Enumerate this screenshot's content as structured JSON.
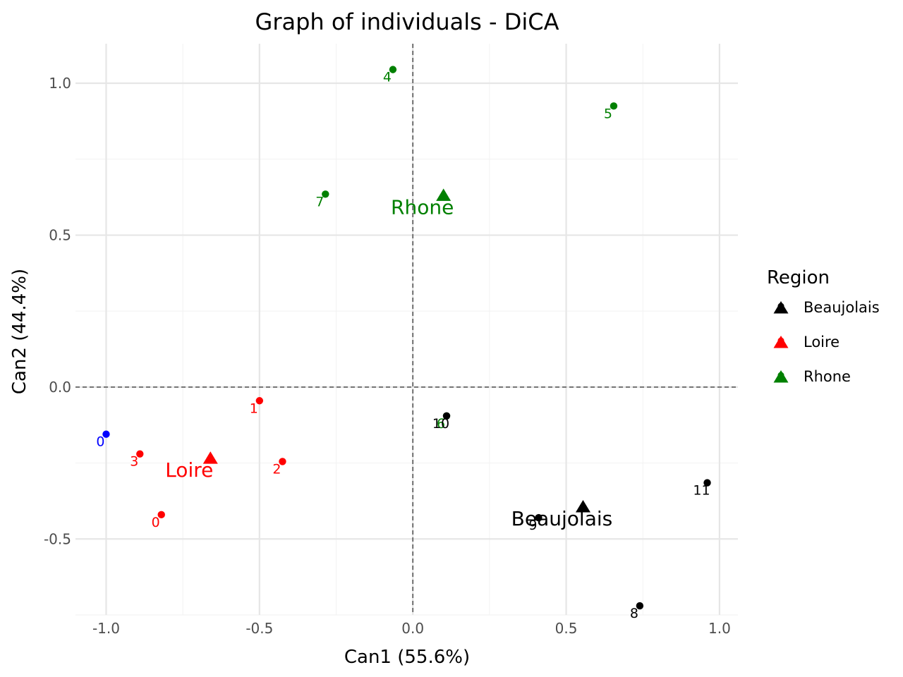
{
  "chart_data": {
    "type": "scatter",
    "title": "Graph of individuals - DiCA",
    "xlabel": "Can1 (55.6%)",
    "ylabel": "Can2 (44.4%)",
    "xlim": [
      -1.1,
      1.06
    ],
    "ylim": [
      -0.75,
      1.13
    ],
    "x_ticks": [
      -1.0,
      -0.5,
      0.0,
      0.5,
      1.0
    ],
    "x_tick_labels": [
      "-1.0",
      "-0.5",
      "0.0",
      "0.5",
      "1.0"
    ],
    "y_ticks": [
      -0.5,
      0.0,
      0.5,
      1.0
    ],
    "y_tick_labels": [
      "-0.5",
      "0.0",
      "0.5",
      "1.0"
    ],
    "grid": true,
    "reference_lines": {
      "x": 0,
      "y": 0
    },
    "legend": {
      "title": "Region",
      "placement": "right",
      "entries": [
        {
          "name": "Beaujolais",
          "color": "#000000"
        },
        {
          "name": "Loire",
          "color": "#ff0000"
        },
        {
          "name": "Rhone",
          "color": "#008000"
        }
      ]
    },
    "points": [
      {
        "label": "0",
        "x": -1.0,
        "y": -0.155,
        "color": "#0000ff"
      },
      {
        "label": "3",
        "x": -0.89,
        "y": -0.22,
        "color": "#ff0000"
      },
      {
        "label": "0",
        "x": -0.82,
        "y": -0.42,
        "color": "#ff0000"
      },
      {
        "label": "1",
        "x": -0.5,
        "y": -0.045,
        "color": "#ff0000"
      },
      {
        "label": "2",
        "x": -0.425,
        "y": -0.245,
        "color": "#ff0000"
      },
      {
        "label": "4",
        "x": -0.065,
        "y": 1.045,
        "color": "#008000"
      },
      {
        "label": "5",
        "x": 0.655,
        "y": 0.925,
        "color": "#008000"
      },
      {
        "label": "7",
        "x": -0.285,
        "y": 0.635,
        "color": "#008000"
      },
      {
        "label": "6",
        "x": 0.11,
        "y": -0.095,
        "color": "#008000"
      },
      {
        "label": "10",
        "x": 0.11,
        "y": -0.095,
        "color": "#000000"
      },
      {
        "label": "9",
        "x": 0.41,
        "y": -0.43,
        "color": "#000000"
      },
      {
        "label": "11",
        "x": 0.96,
        "y": -0.315,
        "color": "#000000"
      },
      {
        "label": "8",
        "x": 0.74,
        "y": -0.72,
        "color": "#000000"
      }
    ],
    "centroids": [
      {
        "name": "Loire",
        "x": -0.66,
        "y": -0.235,
        "color": "#ff0000"
      },
      {
        "name": "Rhone",
        "x": 0.1,
        "y": 0.63,
        "color": "#008000"
      },
      {
        "name": "Beaujolais",
        "x": 0.555,
        "y": -0.395,
        "color": "#000000"
      }
    ]
  }
}
